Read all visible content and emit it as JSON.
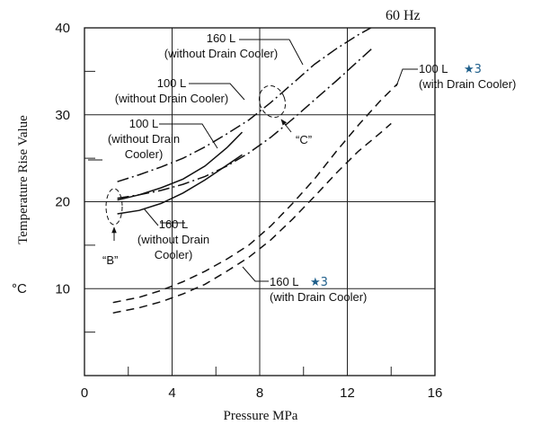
{
  "chart_data": {
    "type": "line",
    "title": "60 Hz",
    "xlabel": "Pressure  MPa",
    "ylabel": "Temperature Rise Value",
    "yunit": "°C",
    "xlim": [
      0,
      16
    ],
    "ylim": [
      0,
      40
    ],
    "x_ticks": [
      "0",
      "4",
      "8",
      "12",
      "16"
    ],
    "y_ticks": [
      "10",
      "20",
      "30",
      "40"
    ],
    "grid": true,
    "series": [
      {
        "name": "160 L (without Drain Cooler)",
        "style": "dashdot",
        "x": [
          1.5,
          2.5,
          3.5,
          4.5,
          5.5,
          6.5,
          7.5,
          8.5,
          9.5,
          10.5,
          11.5,
          12.5,
          13.5,
          14.2
        ],
        "y": [
          22.3,
          23.1,
          24.0,
          25.0,
          26.3,
          27.8,
          29.4,
          31.4,
          33.6,
          35.8,
          37.6,
          39.2,
          40.6,
          41.5
        ]
      },
      {
        "name": "100 L (without Drain Cooler)",
        "style": "dashdot",
        "x": [
          1.5,
          2.5,
          3.5,
          4.5,
          5.5,
          6.5,
          7.5,
          8.5,
          9.5,
          10.5,
          11.5,
          12.5,
          13.2
        ],
        "y": [
          20.4,
          20.8,
          21.3,
          22.0,
          22.9,
          24.1,
          25.6,
          27.4,
          29.5,
          31.7,
          33.9,
          36.2,
          37.8
        ]
      },
      {
        "name": "100 L (without Drain Cooler) solid",
        "style": "solid",
        "x": [
          1.5,
          2.5,
          3.5,
          4.5,
          5.5,
          6.5,
          7.2
        ],
        "y": [
          20.2,
          20.8,
          21.6,
          22.6,
          24.1,
          26.2,
          28.0
        ]
      },
      {
        "name": "160 L (without Drain Cooler) solid",
        "style": "solid",
        "x": [
          1.5,
          2.5,
          3.5,
          4.5,
          5.5,
          6.5,
          7.2
        ],
        "y": [
          18.6,
          19.0,
          19.8,
          21.0,
          22.5,
          24.2,
          25.4
        ]
      },
      {
        "name": "100 L (with Drain Cooler)",
        "style": "dashed",
        "x": [
          1.3,
          2.5,
          3.5,
          4.5,
          5.5,
          6.5,
          7.5,
          8.5,
          9.5,
          10.5,
          11.5,
          12.5,
          13.5,
          14.3
        ],
        "y": [
          8.4,
          9.0,
          9.8,
          10.8,
          12.0,
          13.4,
          15.0,
          17.2,
          19.8,
          22.6,
          25.8,
          28.8,
          31.6,
          33.6
        ]
      },
      {
        "name": "160 L (with Drain Cooler)",
        "style": "dashed",
        "x": [
          1.3,
          2.5,
          3.5,
          4.5,
          5.5,
          6.5,
          7.5,
          8.5,
          9.5,
          10.5,
          11.5,
          12.5,
          13.5,
          14.0
        ],
        "y": [
          7.2,
          7.8,
          8.5,
          9.4,
          10.5,
          12.0,
          13.6,
          15.6,
          18.0,
          20.6,
          23.3,
          25.8,
          27.9,
          29.0
        ]
      }
    ],
    "annotations": [
      {
        "id": "a160_without_top",
        "lines": [
          "160 L",
          "(without Drain Cooler)"
        ]
      },
      {
        "id": "a100_without_dashdot",
        "lines": [
          "100 L",
          "(without Drain Cooler)"
        ]
      },
      {
        "id": "a100_without_solid",
        "lines": [
          "100 L",
          "(without Drain",
          "Cooler)"
        ]
      },
      {
        "id": "a160_without_solid",
        "lines": [
          "160 L",
          "(without Drain",
          "Cooler)"
        ]
      },
      {
        "id": "a100_with",
        "lines": [
          "100 L",
          "(with Drain Cooler)"
        ],
        "star": "★3"
      },
      {
        "id": "a160_with",
        "lines": [
          "160 L",
          "(with Drain Cooler)"
        ],
        "star": "★3"
      },
      {
        "id": "mark_b",
        "lines": [
          "“B”"
        ]
      },
      {
        "id": "mark_c",
        "lines": [
          "“C”"
        ]
      }
    ]
  }
}
